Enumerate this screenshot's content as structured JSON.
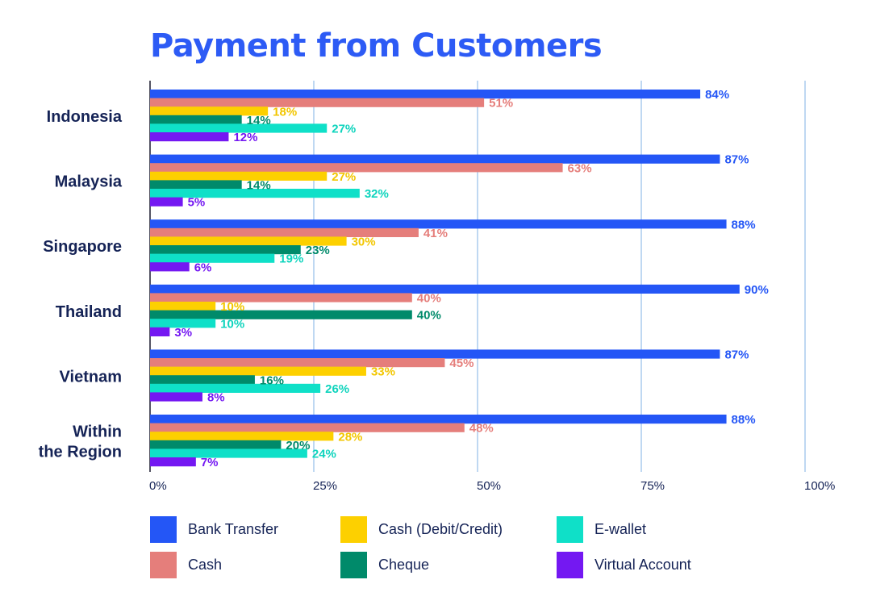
{
  "chart_data": {
    "type": "bar",
    "orientation": "horizontal",
    "title": "Payment from Customers",
    "categories": [
      "Indonesia",
      "Malaysia",
      "Singapore",
      "Thailand",
      "Vietnam",
      "Within the Region"
    ],
    "category_lines": [
      [
        "Indonesia"
      ],
      [
        "Malaysia"
      ],
      [
        "Singapore"
      ],
      [
        "Thailand"
      ],
      [
        "Vietnam"
      ],
      [
        "Within",
        "the Region"
      ]
    ],
    "xlim": [
      0,
      100
    ],
    "x_ticks": [
      0,
      25,
      50,
      75,
      100
    ],
    "x_tick_labels": [
      "0%",
      "25%",
      "50%",
      "75%",
      "100%"
    ],
    "grid": true,
    "legend_position": "bottom",
    "series": [
      {
        "name": "Bank Transfer",
        "color": "#2456f6",
        "values": [
          84,
          87,
          88,
          90,
          87,
          88
        ],
        "labels": [
          "84%",
          "87%",
          "88%",
          "90%",
          "87%",
          "88%"
        ]
      },
      {
        "name": "Cash",
        "color": "#e57e7b",
        "values": [
          51,
          63,
          41,
          40,
          45,
          48
        ],
        "labels": [
          "51%",
          "63%",
          "41%",
          "40%",
          "45%",
          "48%"
        ]
      },
      {
        "name": "Cash (Debit/Credit)",
        "color": "#fdd000",
        "values": [
          18,
          27,
          30,
          10,
          33,
          28
        ],
        "labels": [
          "18%",
          "27%",
          "30%",
          "10%",
          "33%",
          "28%"
        ]
      },
      {
        "name": "Cheque",
        "color": "#008a6a",
        "values": [
          14,
          14,
          23,
          40,
          16,
          20
        ],
        "labels": [
          "14%",
          "14%",
          "23%",
          "40%",
          "16%",
          "20%"
        ]
      },
      {
        "name": "E-wallet",
        "color": "#0fe0c8",
        "values": [
          27,
          32,
          19,
          10,
          26,
          24
        ],
        "labels": [
          "27%",
          "32%",
          "19%",
          "10%",
          "26%",
          "24%"
        ]
      },
      {
        "name": "Virtual Account",
        "color": "#7418f2",
        "values": [
          12,
          5,
          6,
          3,
          8,
          7
        ],
        "labels": [
          "12%",
          "5%",
          "6%",
          "3%",
          "8%",
          "7%"
        ]
      }
    ],
    "label_colors": [
      "#2456f6",
      "#e57e7b",
      "#f2c600",
      "#008a6a",
      "#0fd4bd",
      "#7418f2"
    ]
  },
  "legend_order": [
    0,
    2,
    4,
    1,
    3,
    5
  ]
}
